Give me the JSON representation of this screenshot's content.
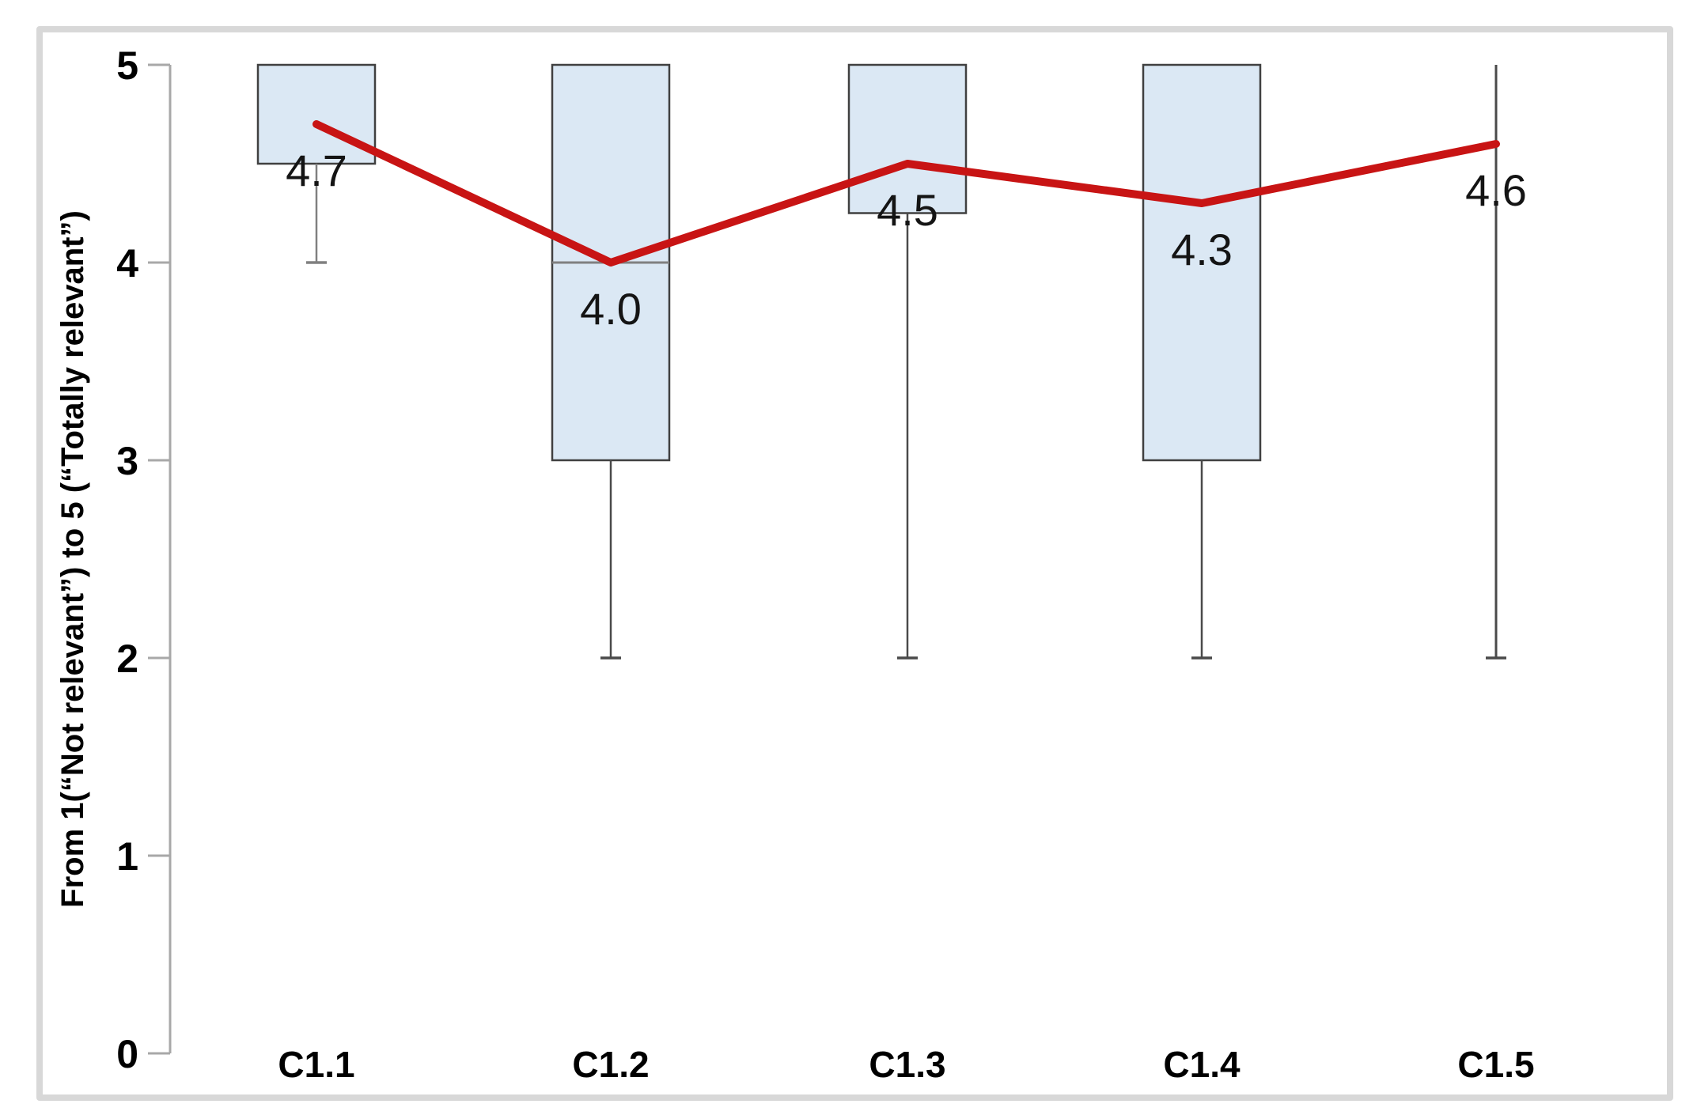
{
  "chart_data": {
    "type": "boxplot",
    "title": "",
    "categories": [
      "C1.1",
      "C1.2",
      "C1.3",
      "C1.4",
      "C1.5"
    ],
    "xlabel": "",
    "ylabel": "From 1(“Not relevant”) to 5 (“Totally relevant”)",
    "ylim": [
      0,
      5
    ],
    "yticks": [
      "0",
      "1",
      "2",
      "3",
      "4",
      "5"
    ],
    "grid": false,
    "legend_position": "none",
    "boxes": [
      {
        "category": "C1.1",
        "q1": 4.5,
        "q3": 5,
        "median": null,
        "whisker_low": 4,
        "whisker_high": 5
      },
      {
        "category": "C1.2",
        "q1": 3,
        "q3": 5,
        "median": 4,
        "whisker_low": 2,
        "whisker_high": 5
      },
      {
        "category": "C1.3",
        "q1": 4.25,
        "q3": 5,
        "median": null,
        "whisker_low": 2,
        "whisker_high": 5
      },
      {
        "category": "C1.4",
        "q1": 3,
        "q3": 5,
        "median": null,
        "whisker_low": 2,
        "whisker_high": 5
      },
      {
        "category": "C1.5",
        "q1": null,
        "q3": null,
        "median": null,
        "whisker_low": 2,
        "whisker_high": 5
      }
    ],
    "mean_series": {
      "name": "mean-line",
      "values": [
        4.7,
        4.0,
        4.5,
        4.3,
        4.6
      ],
      "labels": [
        "4.7",
        "4.0",
        "4.5",
        "4.3",
        "4.6"
      ]
    },
    "colors": {
      "box_fill": "#dbe8f4",
      "box_border": "#404040",
      "whisker": "#4a4a4a",
      "whisker_c11": "#808080",
      "median": "#808080",
      "mean_line": "#c81414",
      "axis": "#a8a8a8",
      "tick_label": "#000000",
      "data_label": "#141414",
      "category_label": "#000000",
      "panel_border": "#d8d8d8"
    }
  }
}
